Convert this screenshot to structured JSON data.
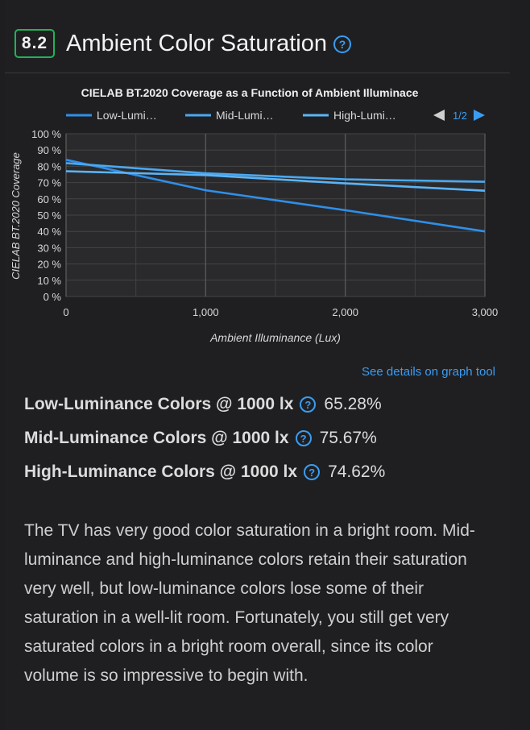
{
  "header": {
    "score": "8.2",
    "title": "Ambient Color Saturation",
    "help_icon": "question-circle-icon"
  },
  "chart_data": {
    "type": "line",
    "title": "CIELAB BT.2020 Coverage as a Function of Ambient Illuminace",
    "xlabel": "Ambient Illuminance (Lux)",
    "ylabel": "CIELAB BT.2020 Coverage",
    "xlim": [
      0,
      3000
    ],
    "ylim": [
      0,
      100
    ],
    "x_ticks": [
      "0",
      "1,000",
      "2,000",
      "3,000"
    ],
    "y_ticks": [
      "0 %",
      "10 %",
      "20 %",
      "30 %",
      "40 %",
      "50 %",
      "60 %",
      "70 %",
      "80 %",
      "90 %",
      "100 %"
    ],
    "legend": {
      "position": "top",
      "items": [
        "Low-Lumi…",
        "Mid-Lumi…",
        "High-Lumi…"
      ],
      "page": "1/2"
    },
    "grid": true,
    "colors": [
      "#2f8fe8",
      "#4aa8f0",
      "#5cb4f6"
    ],
    "series": [
      {
        "name": "Low-Luminance",
        "x": [
          0,
          1000,
          2000,
          3000
        ],
        "y": [
          84,
          65.28,
          53,
          40
        ]
      },
      {
        "name": "Mid-Luminance",
        "x": [
          0,
          1000,
          2000,
          3000
        ],
        "y": [
          82,
          75.67,
          72,
          70.5
        ]
      },
      {
        "name": "High-Luminance",
        "x": [
          0,
          1000,
          2000,
          3000
        ],
        "y": [
          77,
          74.62,
          69.5,
          65
        ]
      }
    ]
  },
  "link": {
    "label": "See details on graph tool"
  },
  "stats": [
    {
      "label": "Low-Luminance Colors @ 1000 lx",
      "value": "65.28%"
    },
    {
      "label": "Mid-Luminance Colors @ 1000 lx",
      "value": "75.67%"
    },
    {
      "label": "High-Luminance Colors @ 1000 lx",
      "value": "74.62%"
    }
  ],
  "description": "The TV has very good color saturation in a bright room. Mid-luminance and high-luminance colors retain their saturation very well, but low-luminance colors lose some of their saturation in a well-lit room. Fortunately, you still get very saturated colors in a bright room overall, since its color volume is so impressive to begin with."
}
